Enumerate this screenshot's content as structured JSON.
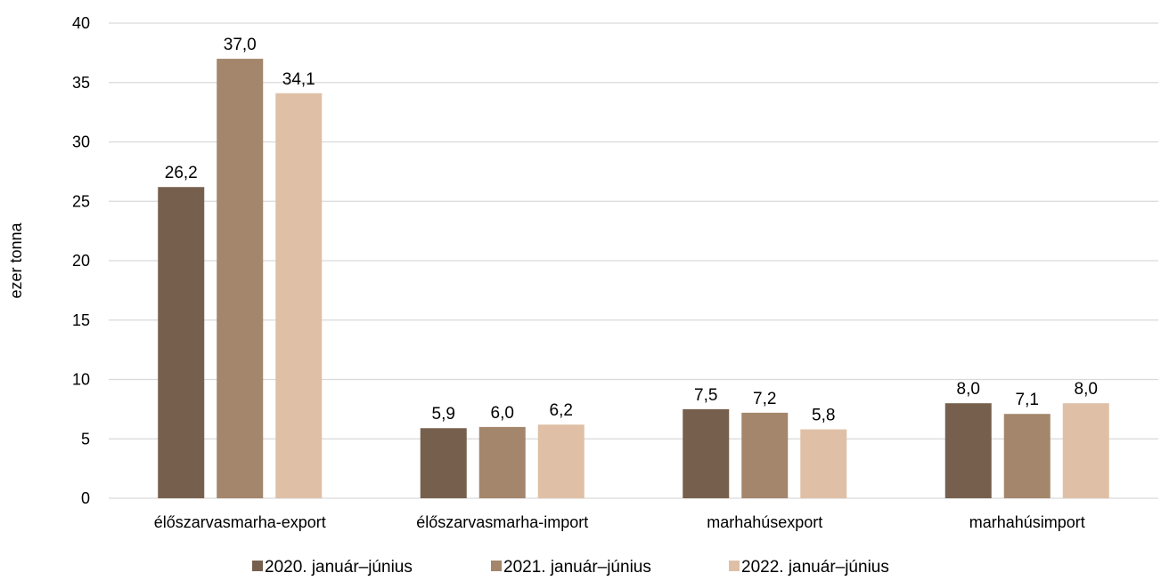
{
  "chart_data": {
    "type": "bar",
    "ylabel": "ezer tonna",
    "ylim": [
      0,
      40
    ],
    "yticks": [
      0,
      5,
      10,
      15,
      20,
      25,
      30,
      35,
      40
    ],
    "grid": true,
    "legend_position": "bottom",
    "categories": [
      "élőszarvasmarha-export",
      "élőszarvasmarha-import",
      "marhahúsexport",
      "marhahúsimport"
    ],
    "series": [
      {
        "name": "2020. január–június",
        "color": "#76604d",
        "values": [
          26.2,
          5.9,
          7.5,
          8.0
        ],
        "labels": [
          "26,2",
          "5,9",
          "7,5",
          "8,0"
        ]
      },
      {
        "name": "2021.  január–június",
        "color": "#a3866b",
        "values": [
          37.0,
          6.0,
          7.2,
          7.1
        ],
        "labels": [
          "37,0",
          "6,0",
          "7,2",
          "7,1"
        ]
      },
      {
        "name": "2022.  január–június",
        "color": "#dfc0a6",
        "values": [
          34.1,
          6.2,
          5.8,
          8.0
        ],
        "labels": [
          "34,1",
          "6,2",
          "5,8",
          "8,0"
        ]
      }
    ]
  }
}
